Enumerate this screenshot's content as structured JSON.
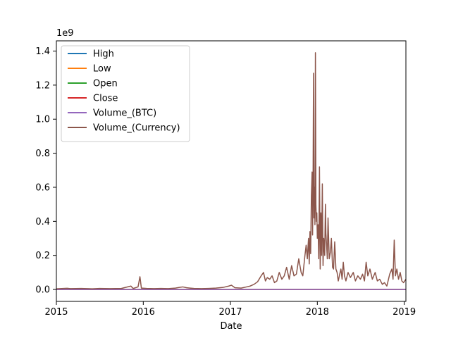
{
  "chart_data": {
    "type": "line",
    "title": "",
    "xlabel": "Date",
    "ylabel": "",
    "y_multiplier_label": "1e9",
    "xlim": [
      "2015-01-01",
      "2019-01-08"
    ],
    "ylim": [
      -0.07,
      1.46
    ],
    "x_ticks": [
      {
        "value": "2015-01-01",
        "label": "2015"
      },
      {
        "value": "2016-01-01",
        "label": "2016"
      },
      {
        "value": "2017-01-01",
        "label": "2017"
      },
      {
        "value": "2018-01-01",
        "label": "2018"
      },
      {
        "value": "2019-01-01",
        "label": "2019"
      }
    ],
    "y_ticks": [
      {
        "value": 0.0,
        "label": "0.0"
      },
      {
        "value": 0.2,
        "label": "0.2"
      },
      {
        "value": 0.4,
        "label": "0.4"
      },
      {
        "value": 0.6,
        "label": "0.6"
      },
      {
        "value": 0.8,
        "label": "0.8"
      },
      {
        "value": 1.0,
        "label": "1.0"
      },
      {
        "value": 1.2,
        "label": "1.2"
      },
      {
        "value": 1.4,
        "label": "1.4"
      }
    ],
    "grid": false,
    "legend": {
      "position": "top-left",
      "entries": [
        {
          "name": "High",
          "color": "#1f77b4"
        },
        {
          "name": "Low",
          "color": "#ff7f0e"
        },
        {
          "name": "Open",
          "color": "#2ca02c"
        },
        {
          "name": "Close",
          "color": "#d62728"
        },
        {
          "name": "Volume_(BTC)",
          "color": "#9467bd"
        },
        {
          "name": "Volume_(Currency)",
          "color": "#8c564b"
        }
      ]
    },
    "series": [
      {
        "name": "High",
        "color": "#1f77b4",
        "x": [
          "2015-01-01",
          "2019-01-08"
        ],
        "values": [
          0.0,
          0.0
        ]
      },
      {
        "name": "Low",
        "color": "#ff7f0e",
        "x": [
          "2015-01-01",
          "2019-01-08"
        ],
        "values": [
          0.0,
          0.0
        ]
      },
      {
        "name": "Open",
        "color": "#2ca02c",
        "x": [
          "2015-01-01",
          "2019-01-08"
        ],
        "values": [
          0.0,
          0.0
        ]
      },
      {
        "name": "Close",
        "color": "#d62728",
        "x": [
          "2015-01-01",
          "2019-01-08"
        ],
        "values": [
          0.0,
          0.0
        ]
      },
      {
        "name": "Volume_(BTC)",
        "color": "#9467bd",
        "x": [
          "2015-01-01",
          "2019-01-08"
        ],
        "values": [
          0.0,
          0.0
        ]
      },
      {
        "name": "Volume_(Currency)",
        "color": "#8c564b",
        "x": [
          "2015-01-01",
          "2015-02-15",
          "2015-03-01",
          "2015-04-15",
          "2015-06-01",
          "2015-07-01",
          "2015-08-15",
          "2015-10-01",
          "2015-11-10",
          "2015-11-15",
          "2015-11-20",
          "2015-12-10",
          "2015-12-18",
          "2015-12-24",
          "2016-01-15",
          "2016-02-15",
          "2016-03-15",
          "2016-04-15",
          "2016-05-15",
          "2016-06-01",
          "2016-06-15",
          "2016-07-01",
          "2016-07-15",
          "2016-08-01",
          "2016-09-01",
          "2016-10-01",
          "2016-11-01",
          "2016-12-01",
          "2016-12-25",
          "2017-01-05",
          "2017-01-20",
          "2017-02-15",
          "2017-03-10",
          "2017-03-25",
          "2017-04-10",
          "2017-04-25",
          "2017-05-10",
          "2017-05-20",
          "2017-05-28",
          "2017-06-05",
          "2017-06-15",
          "2017-06-25",
          "2017-07-05",
          "2017-07-15",
          "2017-07-25",
          "2017-08-05",
          "2017-08-15",
          "2017-08-25",
          "2017-09-05",
          "2017-09-15",
          "2017-09-25",
          "2017-10-05",
          "2017-10-15",
          "2017-10-25",
          "2017-11-01",
          "2017-11-10",
          "2017-11-15",
          "2017-11-20",
          "2017-11-25",
          "2017-11-28",
          "2017-12-01",
          "2017-12-04",
          "2017-12-07",
          "2017-12-10",
          "2017-12-12",
          "2017-12-14",
          "2017-12-16",
          "2017-12-18",
          "2017-12-20",
          "2017-12-22",
          "2017-12-24",
          "2017-12-26",
          "2017-12-28",
          "2017-12-30",
          "2018-01-01",
          "2018-01-04",
          "2018-01-07",
          "2018-01-10",
          "2018-01-13",
          "2018-01-16",
          "2018-01-19",
          "2018-01-22",
          "2018-01-25",
          "2018-01-28",
          "2018-02-01",
          "2018-02-04",
          "2018-02-06",
          "2018-02-09",
          "2018-02-12",
          "2018-02-15",
          "2018-02-20",
          "2018-02-25",
          "2018-03-01",
          "2018-03-06",
          "2018-03-10",
          "2018-03-15",
          "2018-03-20",
          "2018-03-25",
          "2018-03-30",
          "2018-04-05",
          "2018-04-10",
          "2018-04-15",
          "2018-04-20",
          "2018-04-25",
          "2018-05-01",
          "2018-05-10",
          "2018-05-20",
          "2018-06-01",
          "2018-06-10",
          "2018-06-20",
          "2018-07-01",
          "2018-07-10",
          "2018-07-18",
          "2018-07-25",
          "2018-08-01",
          "2018-08-10",
          "2018-08-20",
          "2018-09-01",
          "2018-09-10",
          "2018-09-20",
          "2018-10-01",
          "2018-10-10",
          "2018-10-20",
          "2018-11-01",
          "2018-11-10",
          "2018-11-15",
          "2018-11-20",
          "2018-11-25",
          "2018-12-01",
          "2018-12-08",
          "2018-12-15",
          "2018-12-22",
          "2018-12-29",
          "2019-01-08"
        ],
        "values": [
          0.004,
          0.007,
          0.005,
          0.006,
          0.004,
          0.006,
          0.005,
          0.006,
          0.02,
          0.012,
          0.006,
          0.015,
          0.075,
          0.008,
          0.006,
          0.005,
          0.006,
          0.005,
          0.008,
          0.012,
          0.015,
          0.01,
          0.008,
          0.006,
          0.005,
          0.006,
          0.008,
          0.012,
          0.02,
          0.025,
          0.01,
          0.008,
          0.015,
          0.02,
          0.03,
          0.045,
          0.08,
          0.1,
          0.05,
          0.07,
          0.06,
          0.08,
          0.04,
          0.05,
          0.1,
          0.06,
          0.08,
          0.13,
          0.06,
          0.14,
          0.08,
          0.09,
          0.18,
          0.1,
          0.08,
          0.2,
          0.26,
          0.18,
          0.3,
          0.15,
          0.34,
          0.21,
          0.55,
          0.69,
          0.32,
          0.58,
          1.27,
          0.42,
          0.6,
          0.38,
          1.39,
          0.5,
          0.4,
          0.45,
          0.3,
          0.38,
          0.18,
          0.72,
          0.12,
          0.45,
          0.2,
          0.62,
          0.14,
          0.3,
          0.2,
          0.5,
          0.33,
          0.26,
          0.18,
          0.42,
          0.18,
          0.22,
          0.3,
          0.13,
          0.12,
          0.28,
          0.12,
          0.1,
          0.05,
          0.09,
          0.12,
          0.06,
          0.16,
          0.08,
          0.05,
          0.1,
          0.07,
          0.1,
          0.05,
          0.08,
          0.06,
          0.09,
          0.05,
          0.16,
          0.08,
          0.12,
          0.06,
          0.1,
          0.05,
          0.06,
          0.03,
          0.04,
          0.02,
          0.09,
          0.12,
          0.06,
          0.29,
          0.08,
          0.12,
          0.06,
          0.1,
          0.05,
          0.04,
          0.06
        ]
      }
    ]
  }
}
